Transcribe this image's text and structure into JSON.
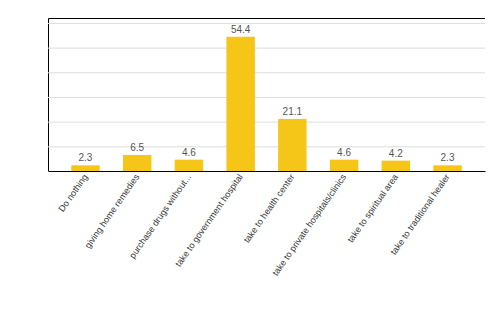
{
  "chart_data": {
    "type": "bar",
    "categories": [
      "Do nothing",
      "giving home remedies",
      "purchase drugs without...",
      "take to government hospital",
      "take to health center",
      "take to private hospitals/clinics",
      "take to spiritual area",
      "take to traditional healer"
    ],
    "values": [
      2.3,
      6.5,
      4.6,
      54.4,
      21.1,
      4.6,
      4.2,
      2.3
    ],
    "color": "#F5C518",
    "ylim": [
      0,
      62
    ],
    "yticks": [
      0,
      10,
      20,
      30,
      40,
      50,
      60
    ],
    "grid": true,
    "data_labels": true,
    "tick_labels": "x"
  }
}
